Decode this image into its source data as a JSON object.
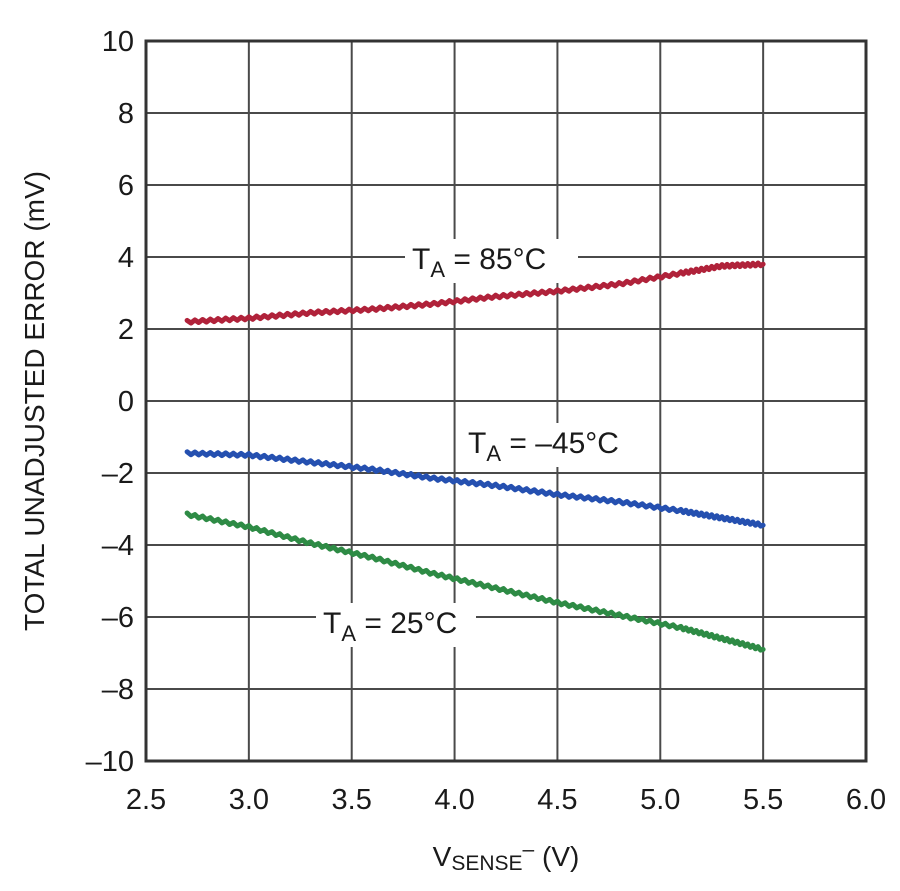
{
  "chart_data": {
    "type": "line",
    "xlabel": {
      "main": "V",
      "sub": "SENSE",
      "sup": "–",
      "unit": " (V)"
    },
    "ylabel": "TOTAL UNADJUSTED ERROR (mV)",
    "xlim": [
      2.5,
      6.0
    ],
    "ylim": [
      -10,
      10
    ],
    "x_ticks": [
      "2.5",
      "3.0",
      "3.5",
      "4.0",
      "4.5",
      "5.0",
      "5.5",
      "6.0"
    ],
    "y_ticks": [
      "10",
      "8",
      "6",
      "4",
      "2",
      "0",
      "–2",
      "–4",
      "–6",
      "–8",
      "–10"
    ],
    "grid": true,
    "series": [
      {
        "name": "TA = 85°C",
        "label": {
          "main": "T",
          "sub": "A",
          "rest": " = 85°C"
        },
        "color": "#b0223a",
        "x": [
          2.7,
          3.0,
          3.3,
          3.6,
          3.9,
          4.2,
          4.5,
          4.8,
          5.1,
          5.3,
          5.5
        ],
        "y": [
          2.2,
          2.3,
          2.45,
          2.55,
          2.7,
          2.9,
          3.05,
          3.25,
          3.55,
          3.75,
          3.8
        ]
      },
      {
        "name": "TA = –45°C",
        "label": {
          "main": "T",
          "sub": "A",
          "rest": " = –45°C"
        },
        "color": "#2550b0",
        "x": [
          2.7,
          3.0,
          3.3,
          3.6,
          3.9,
          4.2,
          4.5,
          4.8,
          5.1,
          5.3,
          5.5
        ],
        "y": [
          -1.45,
          -1.5,
          -1.7,
          -1.9,
          -2.15,
          -2.35,
          -2.6,
          -2.8,
          -3.05,
          -3.25,
          -3.45
        ]
      },
      {
        "name": "TA = 25°C",
        "label": {
          "main": "T",
          "sub": "A",
          "rest": " = 25°C"
        },
        "color": "#2e8b45",
        "x": [
          2.7,
          3.0,
          3.3,
          3.6,
          3.9,
          4.2,
          4.5,
          4.8,
          5.1,
          5.3,
          5.5
        ],
        "y": [
          -3.15,
          -3.5,
          -3.95,
          -4.35,
          -4.8,
          -5.2,
          -5.6,
          -5.95,
          -6.3,
          -6.6,
          -6.9
        ]
      }
    ]
  }
}
